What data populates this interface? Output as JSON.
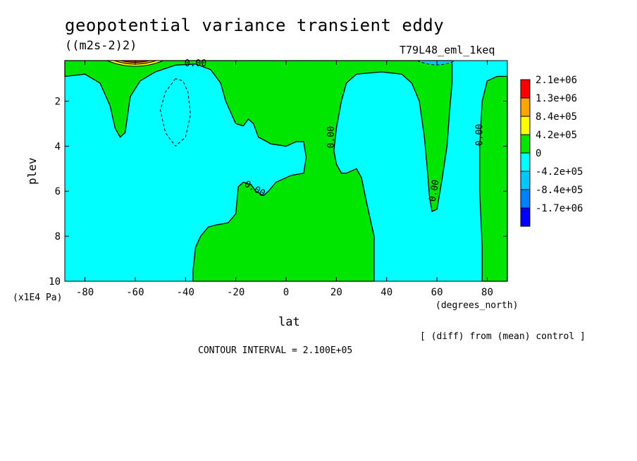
{
  "chart_data": {
    "type": "contour",
    "title": "geopotential variance transient eddy",
    "units": "((m2s-2)2)",
    "run_label": "T79L48_eml_1keq",
    "xlabel": "lat",
    "x_unit": "(degrees_north)",
    "ylabel": "plev",
    "y_unit": "(x1E4 Pa)",
    "xlim": [
      -88,
      88
    ],
    "ylim": [
      10,
      0.2
    ],
    "x_ticks": [
      -80,
      -60,
      -40,
      -20,
      0,
      20,
      40,
      60,
      80
    ],
    "x_tick_labels": [
      "-80",
      "-60",
      "-40",
      "-20",
      "0",
      "20",
      "40",
      "60",
      "80"
    ],
    "y_ticks": [
      2,
      4,
      6,
      8,
      10
    ],
    "y_tick_labels": [
      "2",
      "4",
      "6",
      "8",
      "10"
    ],
    "note": "[ (diff) from (mean) control ]",
    "contour_interval_text": "CONTOUR INTERVAL = 2.100E+05",
    "contour_labels": [
      "0.00",
      "0.00",
      "0.00",
      "0.00",
      "0.00",
      "0.00"
    ],
    "legend": [
      {
        "label": "2.1e+06",
        "color": "#ff0000"
      },
      {
        "label": "1.3e+06",
        "color": "#ffa500"
      },
      {
        "label": "8.4e+05",
        "color": "#ffff00"
      },
      {
        "label": "4.2e+05",
        "color": "#00e600"
      },
      {
        "label": "0",
        "color": "#00ffff"
      },
      {
        "label": "-4.2e+05",
        "color": "#00c8ff"
      },
      {
        "label": "-8.4e+05",
        "color": "#0080ff"
      },
      {
        "label": "-1.7e+06",
        "color": "#0000ff"
      }
    ],
    "regions": {
      "positive_color": "#00e600",
      "negative_color": "#00ffff",
      "positive_boundaries": [
        [
          [
            -88,
            0.2
          ],
          [
            -88,
            0.9
          ],
          [
            -80,
            0.8
          ],
          [
            -74,
            1.2
          ],
          [
            -70,
            2.2
          ],
          [
            -68,
            3.2
          ],
          [
            -66,
            3.6
          ],
          [
            -64,
            3.4
          ],
          [
            -63,
            2.6
          ],
          [
            -62,
            1.8
          ],
          [
            -58,
            1.1
          ],
          [
            -52,
            0.7
          ],
          [
            -44,
            0.4
          ],
          [
            -36,
            0.35
          ],
          [
            -30,
            0.6
          ],
          [
            -26,
            1.2
          ],
          [
            -24,
            2.0
          ],
          [
            -20,
            3.0
          ],
          [
            -17,
            3.1
          ],
          [
            -15,
            2.8
          ],
          [
            -13,
            3.0
          ],
          [
            -11,
            3.6
          ],
          [
            -6,
            3.9
          ],
          [
            0,
            4.0
          ],
          [
            4,
            3.8
          ],
          [
            7,
            3.8
          ],
          [
            8,
            4.5
          ],
          [
            7,
            5.2
          ],
          [
            2,
            5.3
          ],
          [
            -4,
            5.6
          ],
          [
            -7,
            6.0
          ],
          [
            -9,
            6.2
          ],
          [
            -12,
            6.0
          ],
          [
            -14,
            5.7
          ],
          [
            -17,
            5.6
          ],
          [
            -19,
            5.8
          ],
          [
            -20,
            7.0
          ],
          [
            -23,
            7.4
          ],
          [
            -28,
            7.5
          ],
          [
            -31,
            7.6
          ],
          [
            -34,
            8.0
          ],
          [
            -36,
            8.5
          ],
          [
            -37,
            9.5
          ],
          [
            -37,
            10
          ],
          [
            35,
            10
          ],
          [
            35,
            8.0
          ],
          [
            32,
            6.5
          ],
          [
            30,
            5.4
          ],
          [
            28,
            5.0
          ],
          [
            26,
            5.1
          ],
          [
            24,
            5.2
          ],
          [
            22,
            5.2
          ],
          [
            20,
            4.8
          ],
          [
            19,
            4.2
          ],
          [
            20,
            3.2
          ],
          [
            22,
            2.0
          ],
          [
            24,
            1.2
          ],
          [
            28,
            0.8
          ],
          [
            38,
            0.7
          ],
          [
            46,
            0.8
          ],
          [
            50,
            1.2
          ],
          [
            53,
            2.0
          ],
          [
            55,
            3.6
          ],
          [
            56,
            4.8
          ],
          [
            57,
            6.2
          ],
          [
            58,
            6.9
          ],
          [
            60,
            6.8
          ],
          [
            62,
            5.5
          ],
          [
            64,
            4.0
          ],
          [
            65,
            2.5
          ],
          [
            66,
            1.2
          ],
          [
            66,
            0.2
          ]
        ],
        [
          [
            88,
            0.9
          ],
          [
            84,
            0.9
          ],
          [
            80,
            1.1
          ],
          [
            78,
            2.0
          ],
          [
            77,
            4.0
          ],
          [
            77,
            6.0
          ],
          [
            78,
            8.5
          ],
          [
            78,
            10
          ],
          [
            88,
            10
          ]
        ]
      ],
      "negative_dashed_contour": [
        [
          -44,
          1.0
        ],
        [
          -48,
          1.6
        ],
        [
          -50,
          2.4
        ],
        [
          -48,
          3.4
        ],
        [
          -44,
          4.0
        ],
        [
          -40,
          3.6
        ],
        [
          -38,
          2.6
        ],
        [
          -39,
          1.6
        ],
        [
          -41,
          1.1
        ]
      ],
      "positive_core_lat": -60,
      "negative_core_lat": 60
    }
  }
}
